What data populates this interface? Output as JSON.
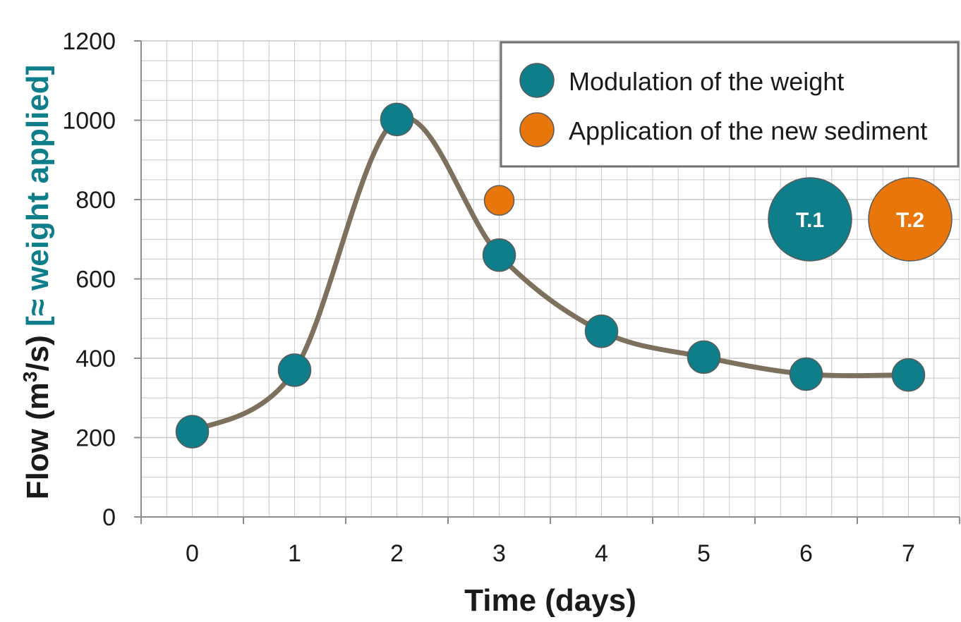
{
  "chart_data": {
    "type": "line",
    "xlabel": "Time (days)",
    "ylabel_main": "Flow (m",
    "ylabel_sup": "3",
    "ylabel_unit_end": "/s)",
    "ylabel_note": "[≈ weight applied]",
    "x": [
      0,
      1,
      2,
      3,
      4,
      5,
      6,
      7
    ],
    "xlim": [
      -0.5,
      7.5
    ],
    "ylim": [
      0,
      1200
    ],
    "x_ticks": [
      "0",
      "1",
      "2",
      "3",
      "4",
      "5",
      "6",
      "7"
    ],
    "y_ticks": [
      "0",
      "200",
      "400",
      "600",
      "800",
      "1000",
      "1200"
    ],
    "grid": true,
    "series": [
      {
        "name": "Modulation of the weight",
        "marker_color": "#0e7f8a",
        "line_color": "#7d715e",
        "points": [
          {
            "x": 0,
            "y": 215
          },
          {
            "x": 1,
            "y": 370
          },
          {
            "x": 2,
            "y": 1002
          },
          {
            "x": 3,
            "y": 660
          },
          {
            "x": 4,
            "y": 468
          },
          {
            "x": 5,
            "y": 403
          },
          {
            "x": 6,
            "y": 360
          },
          {
            "x": 7,
            "y": 358
          }
        ]
      },
      {
        "name": "Application of the new sediment",
        "marker_color": "#e8760a",
        "points": [
          {
            "x": 3,
            "y": 798
          }
        ]
      }
    ],
    "legend": {
      "position": "top-right",
      "items": [
        {
          "label": "Modulation of the weight",
          "color": "#0e7f8a"
        },
        {
          "label": "Application of the new sediment",
          "color": "#e8760a"
        }
      ]
    },
    "badges": [
      {
        "label": "T.1",
        "color": "#0e7f8a"
      },
      {
        "label": "T.2",
        "color": "#e8760a"
      }
    ],
    "colors": {
      "teal": "#0e7f8a",
      "orange": "#e8760a",
      "curve": "#7d715e",
      "grid": "#c8c8c8",
      "axis": "#8c8c8c"
    }
  }
}
